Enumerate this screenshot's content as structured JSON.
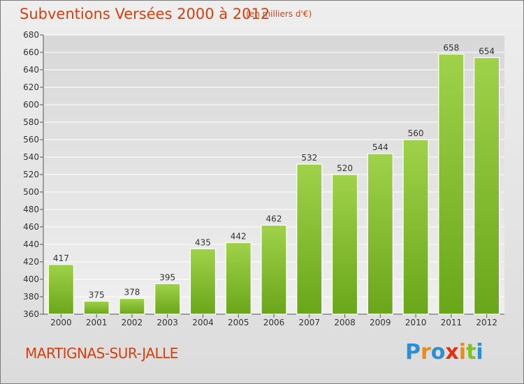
{
  "header": {
    "title": "Subventions Versées 2000 à 2012",
    "subtitle": "(en milliers d'€)"
  },
  "footer": {
    "city": "MARTIGNAS-SUR-JALLE",
    "logo_text": "Proxiti"
  },
  "colors": {
    "bar_light": "#9fd24a",
    "bar_dark": "#6aa61a",
    "title": "#d4400f",
    "grid": "#ffffff"
  },
  "chart_data": {
    "type": "bar",
    "title": "Subventions Versées 2000 à 2012",
    "subtitle": "(en milliers d'€)",
    "categories": [
      "2000",
      "2001",
      "2002",
      "2003",
      "2004",
      "2005",
      "2006",
      "2007",
      "2008",
      "2009",
      "2010",
      "2011",
      "2012"
    ],
    "values": [
      417,
      375,
      378,
      395,
      435,
      442,
      462,
      532,
      520,
      544,
      560,
      658,
      654
    ],
    "ylim": [
      360,
      680
    ],
    "yticks": [
      360,
      380,
      400,
      420,
      440,
      460,
      480,
      500,
      520,
      540,
      560,
      580,
      600,
      620,
      640,
      660,
      680
    ],
    "grid": true,
    "data_labels": true
  }
}
